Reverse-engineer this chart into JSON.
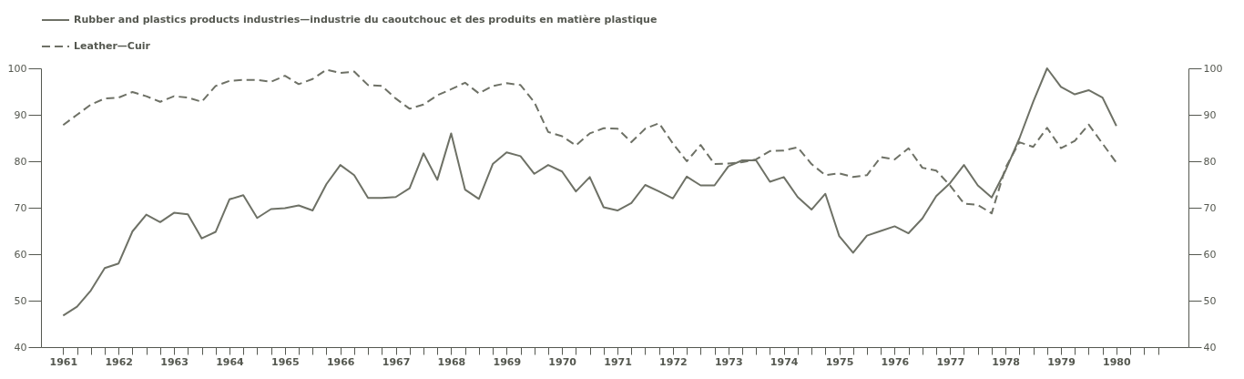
{
  "chart_data": {
    "type": "line",
    "x": [
      1961,
      1961.25,
      1961.5,
      1961.75,
      1962,
      1962.25,
      1962.5,
      1962.75,
      1963,
      1963.25,
      1963.5,
      1963.75,
      1964,
      1964.25,
      1964.5,
      1964.75,
      1965,
      1965.25,
      1965.5,
      1965.75,
      1966,
      1966.25,
      1966.5,
      1966.75,
      1967,
      1967.25,
      1967.5,
      1967.75,
      1968,
      1968.25,
      1968.5,
      1968.75,
      1969,
      1969.25,
      1969.5,
      1969.75,
      1970,
      1970.25,
      1970.5,
      1970.75,
      1971,
      1971.25,
      1971.5,
      1971.75,
      1972,
      1972.25,
      1972.5,
      1972.75,
      1973,
      1973.25,
      1973.5,
      1973.75,
      1974,
      1974.25,
      1974.5,
      1974.75,
      1975,
      1975.25,
      1975.5,
      1975.75,
      1976,
      1976.25,
      1976.5,
      1976.75,
      1977,
      1977.25,
      1977.5,
      1977.75,
      1978,
      1978.25,
      1978.5,
      1978.75,
      1979,
      1979.25,
      1979.5,
      1979.75,
      1980
    ],
    "series": [
      {
        "name": "Rubber and plastics products industries—industrie du caoutchouc et des produits en matière plastique",
        "color": "#6e7166",
        "line_style": "solid",
        "values": [
          46.8,
          48.7,
          52.2,
          57.0,
          58.0,
          64.9,
          68.5,
          66.9,
          68.9,
          68.6,
          63.4,
          64.8,
          71.8,
          72.7,
          67.8,
          69.7,
          69.9,
          70.5,
          69.4,
          75.1,
          79.2,
          77.0,
          72.1,
          72.1,
          72.3,
          74.2,
          81.7,
          76.0,
          86.0,
          73.9,
          71.9,
          79.4,
          81.9,
          81.1,
          77.3,
          79.2,
          77.8,
          73.5,
          76.6,
          70.1,
          69.4,
          71.0,
          74.9,
          73.5,
          72.0,
          76.7,
          74.8,
          74.8,
          78.9,
          80.2,
          80.2,
          75.6,
          76.6,
          72.3,
          69.6,
          73.0,
          63.9,
          60.3,
          64.0,
          65.0,
          66.0,
          64.5,
          67.7,
          72.5,
          75.3,
          79.2,
          74.8,
          72.2,
          78.0,
          84.9,
          92.8,
          100.0,
          96.0,
          94.4,
          95.3,
          93.7,
          87.6
        ]
      },
      {
        "name": "Leather—Cuir",
        "color": "#6e7166",
        "line_style": "dashed",
        "values": [
          87.8,
          90.0,
          92.2,
          93.5,
          93.7,
          94.9,
          94.0,
          92.8,
          94.0,
          93.7,
          92.8,
          96.2,
          97.3,
          97.5,
          97.5,
          97.1,
          98.4,
          96.6,
          97.7,
          99.7,
          99.0,
          99.3,
          96.4,
          96.2,
          93.5,
          91.3,
          92.2,
          94.2,
          95.5,
          96.9,
          94.6,
          96.2,
          96.8,
          96.4,
          92.7,
          86.3,
          85.4,
          83.4,
          86.0,
          87.1,
          87.0,
          84.1,
          87.0,
          88.2,
          83.8,
          80.0,
          83.5,
          79.4,
          79.5,
          79.8,
          80.4,
          82.2,
          82.3,
          83.0,
          79.4,
          77.0,
          77.4,
          76.6,
          77.0,
          80.9,
          80.4,
          82.8,
          78.6,
          78.0,
          74.8,
          70.9,
          70.6,
          68.8,
          78.6,
          84.1,
          83.1,
          87.2,
          82.8,
          84.4,
          87.9,
          83.8,
          79.7
        ]
      }
    ],
    "xlim": [
      1960.6,
      1981.3
    ],
    "xticks": [
      1961,
      {
        "value": 1961.25,
        "label": null
      },
      {
        "value": 1961.5,
        "label": null
      },
      {
        "value": 1961.75,
        "label": null
      },
      1962,
      {
        "value": 1962.25,
        "label": null
      },
      {
        "value": 1962.5,
        "label": null
      },
      {
        "value": 1962.75,
        "label": null
      },
      1963,
      {
        "value": 1963.25,
        "label": null
      },
      {
        "value": 1963.5,
        "label": null
      },
      {
        "value": 1963.75,
        "label": null
      },
      1964,
      {
        "value": 1964.25,
        "label": null
      },
      {
        "value": 1964.5,
        "label": null
      },
      {
        "value": 1964.75,
        "label": null
      },
      1965,
      {
        "value": 1965.25,
        "label": null
      },
      {
        "value": 1965.5,
        "label": null
      },
      {
        "value": 1965.75,
        "label": null
      },
      1966,
      {
        "value": 1966.25,
        "label": null
      },
      {
        "value": 1966.5,
        "label": null
      },
      {
        "value": 1966.75,
        "label": null
      },
      1967,
      {
        "value": 1967.25,
        "label": null
      },
      {
        "value": 1967.5,
        "label": null
      },
      {
        "value": 1967.75,
        "label": null
      },
      1968,
      {
        "value": 1968.25,
        "label": null
      },
      {
        "value": 1968.5,
        "label": null
      },
      {
        "value": 1968.75,
        "label": null
      },
      1969,
      {
        "value": 1969.25,
        "label": null
      },
      {
        "value": 1969.5,
        "label": null
      },
      {
        "value": 1969.75,
        "label": null
      },
      1970,
      {
        "value": 1970.25,
        "label": null
      },
      {
        "value": 1970.5,
        "label": null
      },
      {
        "value": 1970.75,
        "label": null
      },
      1971,
      {
        "value": 1971.25,
        "label": null
      },
      {
        "value": 1971.5,
        "label": null
      },
      {
        "value": 1971.75,
        "label": null
      },
      1972,
      {
        "value": 1972.25,
        "label": null
      },
      {
        "value": 1972.5,
        "label": null
      },
      {
        "value": 1972.75,
        "label": null
      },
      1973,
      {
        "value": 1973.25,
        "label": null
      },
      {
        "value": 1973.5,
        "label": null
      },
      {
        "value": 1973.75,
        "label": null
      },
      1974,
      {
        "value": 1974.25,
        "label": null
      },
      {
        "value": 1974.5,
        "label": null
      },
      {
        "value": 1974.75,
        "label": null
      },
      1975,
      {
        "value": 1975.25,
        "label": null
      },
      {
        "value": 1975.5,
        "label": null
      },
      {
        "value": 1975.75,
        "label": null
      },
      1976,
      {
        "value": 1976.25,
        "label": null
      },
      {
        "value": 1976.5,
        "label": null
      },
      {
        "value": 1976.75,
        "label": null
      },
      1977,
      {
        "value": 1977.25,
        "label": null
      },
      {
        "value": 1977.5,
        "label": null
      },
      {
        "value": 1977.75,
        "label": null
      },
      1978,
      {
        "value": 1978.25,
        "label": null
      },
      {
        "value": 1978.5,
        "label": null
      },
      {
        "value": 1978.75,
        "label": null
      },
      1979,
      {
        "value": 1979.25,
        "label": null
      },
      {
        "value": 1979.5,
        "label": null
      },
      {
        "value": 1979.75,
        "label": null
      },
      1980,
      {
        "value": 1980.25,
        "label": null
      },
      {
        "value": 1980.5,
        "label": null
      },
      {
        "value": 1980.75,
        "label": null
      }
    ],
    "ylim": [
      40,
      100
    ],
    "yticks": [
      40,
      50,
      60,
      70,
      80,
      90,
      100
    ],
    "y2lim": [
      40,
      100
    ],
    "y2ticks": [
      40,
      50,
      60,
      70,
      80,
      90,
      100
    ],
    "legend": "top left"
  }
}
